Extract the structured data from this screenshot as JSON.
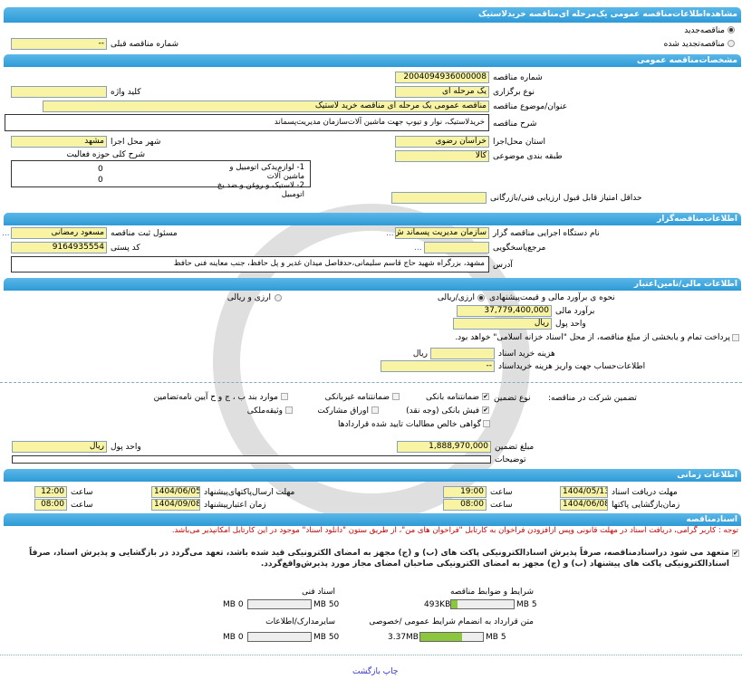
{
  "title": "مشاهده‌اطلاعات‌مناقصه عمومی یک‌مرحله ای‌مناقصه خریدلاستیک",
  "tender_type": {
    "new": "مناقصه‌جدید",
    "renewed": "مناقصه‌تجدید شده",
    "selected": "new"
  },
  "prev_number": {
    "label": "شماره مناقصه قبلی",
    "value": "--"
  },
  "general": {
    "header": "مشخصات‌مناقصه عمومی",
    "number_label": "شماره مناقصه",
    "number": "2004094936000008",
    "holding_label": "نوع برگزاری",
    "holding": "یک مرحله ای",
    "keyword_label": "کلید واژه",
    "keyword": "",
    "subject_label": "عنوان/موضوع مناقصه",
    "subject": "مناقصه عمومی یک مرحله ای مناقصه خرید لاستیک",
    "desc_label": "شرح مناقصه",
    "desc": "خریدلاستیک، نوار و تیوپ جهت ماشین آلات‌سازمان مدیریت‌پسماند",
    "province_label": "استان محل‌اجرا",
    "province": "خراسان رضوی",
    "city_label": "شهر محل اجرا",
    "city": "مشهد",
    "category_label": "طبقه بندی موضوعی",
    "category": "کالا",
    "activity_label": "شرح کلی حوزه فعالیت",
    "activities": [
      {
        "text": "1-   لوازم‌یدکی اتومبیل و ماشین آلات",
        "value": "0"
      },
      {
        "text": "2- لاستیک و روغن و ضد یخ اتومبیل",
        "value": "0"
      }
    ],
    "min_score_label": "حداقل امتیاز قابل قبول ارزیابی فنی/بازرگانی",
    "min_score": ""
  },
  "organizer": {
    "header": "اطلاعات‌مناقصه‌گزار",
    "org_label": "نام دستگاه اجرایی مناقصه گزار",
    "org": "سازمان مدیریت پسماند ش",
    "resp_label": "مسئول ثبت مناقصه",
    "resp": "مسعود رمضانی",
    "ref_label": "مرجع‌پاسخگویی",
    "ref": "",
    "postal_label": "کد پستی",
    "postal": "9164935554",
    "address_label": "آدرس",
    "address": "مشهد، بزرگراه شهید حاج قاسم سلیمانی،حدفاصل میدان غدیر و پل حافظ، جنب معاینه فنی حافظ",
    "more": "..."
  },
  "finance": {
    "header": "اطلاعات مالی/تامین‌اعتبار",
    "method_label": "نحوه ی برآورد مالی و قیمت‌پیشنهادی",
    "opt1": "ارزی/ریالی",
    "opt2": "ارزی و ریالی",
    "estimate_label": "برآورد مالی",
    "estimate": "37,779,400,000",
    "currency_label": "واحد پول",
    "currency": "ریال",
    "treasury": "پرداخت تمام و یابخشی از مبلغ مناقصه، از محل \"اسناد خزانه اسلامی\" خواهد بود.",
    "doc_fee_label": "هزینه خرید اسناد",
    "doc_fee": "",
    "doc_fee_unit": "ریال",
    "account_label": "اطلاعات‌حساب جهت واریز هزینه خریداسناد",
    "account": "--"
  },
  "guarantee": {
    "label": "تضمین شرکت در مناقصه:",
    "type_label": "نوع تضمین",
    "options": [
      {
        "label": "ضمانتنامه بانکی",
        "checked": true
      },
      {
        "label": "ضمانتنامه غیربانکی",
        "checked": false
      },
      {
        "label": "موارد بند ب ، ج و ح آیین نامه‌تضامین",
        "checked": false
      },
      {
        "label": "فیش بانکی (وجه نقد)",
        "checked": true
      },
      {
        "label": "اوراق مشارکت",
        "checked": false
      },
      {
        "label": "وثیقه‌ملکی",
        "checked": false
      },
      {
        "label": "گواهی خالص مطالبات تایید شده قراردادها",
        "checked": false
      }
    ],
    "amount_label": "مبلغ تضمین",
    "amount": "1,888,970,000",
    "currency_label": "واحد پول",
    "currency": "ریال",
    "notes_label": "توضیحات",
    "notes": ""
  },
  "timing": {
    "header": "اطلاعات زمانی",
    "time_label": "ساعت",
    "doc_deadline_label": "مهلت دریافت اسناد",
    "doc_deadline": "1404/05/13",
    "doc_deadline_time": "19:00",
    "submit_label": "مهلت ارسال‌پاکتهای‌پیشنهاد",
    "submit": "1404/06/05",
    "submit_time": "12:00",
    "open_label": "زمان‌بازگشایی پاکتها",
    "open": "1404/06/08",
    "open_time": "08:00",
    "valid_label": "زمان اعتبارپیشنهاد",
    "valid": "1404/09/08",
    "valid_time": "08:00"
  },
  "documents": {
    "header": "اسنادمناقصه",
    "notice": "توجه : کاربر گرامی، دریافت اسناد در مهلت قانونی وپس ازافزودن فراخوان به کارتابل \"فراخوان های من\"، از طریق ستون \"دانلود اسناد\" موجود در این کارتابل امکانپذیر می‌باشد.",
    "commitment": "متعهد می شود دراسنادمناقصه، صرفاً پذیرش اسنادالکترونیکی پاکت های (ب) و (ج) مجهز به امضای الکترونیکی قید شده باشد، تعهد می‌گردد در بازگشایی و پذیرش اسناد، صرفاً اسنادالکترونیکی پاکت های پیشنهاد (ب) و (ج) مجهز به امضای الکترونیکی صاحبان امضای مجاز مورد پذیرش‌واقع‌گردد.",
    "files": [
      {
        "label": "شرایط و ضوابط مناقصه",
        "size": "493KB",
        "max": "5 MB",
        "fill": 0.1
      },
      {
        "label": "اسناد فنی",
        "size": "0 MB",
        "max": "50 MB",
        "fill": 0
      },
      {
        "label": "متن قرارداد به انضمام شرایط عمومی /خصوصی",
        "size": "3.37MB",
        "max": "5 MB",
        "fill": 0.67
      },
      {
        "label": "سایرمدارک/اطلاعات",
        "size": "0 MB",
        "max": "50 MB",
        "fill": 0
      }
    ]
  },
  "footer": {
    "links": "چاپ بازگشت"
  },
  "colors": {
    "header": "#2e9ad6",
    "input": "#f8f4a4",
    "notice": "#cc0000",
    "progress": "#8cc63f"
  }
}
